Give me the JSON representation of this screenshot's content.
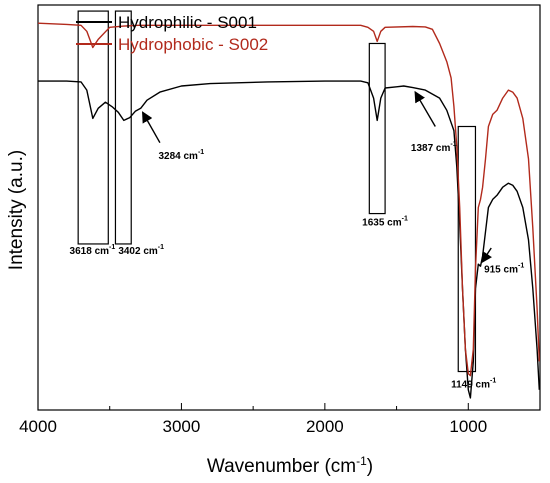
{
  "chart_data": {
    "type": "line",
    "xlabel": "Wavenumber (cm",
    "xlabel_sup": "-1",
    "xlabel_tail": ")",
    "ylabel": "Intensity (a.u.)",
    "xlim": [
      4000,
      500
    ],
    "x_reversed": true,
    "ylim": [
      0,
      1
    ],
    "y_ticks_shown": false,
    "xticks": [
      4000,
      3000,
      2000,
      1000
    ],
    "grid": false,
    "legend": "top-left",
    "series": [
      {
        "name": "Hydrophilic - S001",
        "color": "#000000",
        "points": [
          [
            4000,
            0.812
          ],
          [
            3800,
            0.812
          ],
          [
            3700,
            0.81
          ],
          [
            3660,
            0.79
          ],
          [
            3618,
            0.72
          ],
          [
            3580,
            0.745
          ],
          [
            3530,
            0.76
          ],
          [
            3480,
            0.748
          ],
          [
            3440,
            0.735
          ],
          [
            3402,
            0.715
          ],
          [
            3360,
            0.722
          ],
          [
            3320,
            0.738
          ],
          [
            3284,
            0.745
          ],
          [
            3240,
            0.765
          ],
          [
            3150,
            0.785
          ],
          [
            3000,
            0.8
          ],
          [
            2800,
            0.806
          ],
          [
            2400,
            0.81
          ],
          [
            2000,
            0.812
          ],
          [
            1750,
            0.812
          ],
          [
            1700,
            0.808
          ],
          [
            1660,
            0.77
          ],
          [
            1635,
            0.715
          ],
          [
            1610,
            0.77
          ],
          [
            1580,
            0.795
          ],
          [
            1500,
            0.798
          ],
          [
            1450,
            0.8
          ],
          [
            1387,
            0.796
          ],
          [
            1300,
            0.79
          ],
          [
            1200,
            0.77
          ],
          [
            1150,
            0.74
          ],
          [
            1100,
            0.69
          ],
          [
            1080,
            0.6
          ],
          [
            1060,
            0.46
          ],
          [
            1040,
            0.3
          ],
          [
            1020,
            0.15
          ],
          [
            1000,
            0.05
          ],
          [
            985,
            0.03
          ],
          [
            965,
            0.12
          ],
          [
            950,
            0.3
          ],
          [
            930,
            0.36
          ],
          [
            915,
            0.355
          ],
          [
            900,
            0.38
          ],
          [
            880,
            0.44
          ],
          [
            860,
            0.5
          ],
          [
            830,
            0.52
          ],
          [
            800,
            0.53
          ],
          [
            760,
            0.55
          ],
          [
            720,
            0.56
          ],
          [
            690,
            0.555
          ],
          [
            660,
            0.54
          ],
          [
            620,
            0.5
          ],
          [
            580,
            0.42
          ],
          [
            550,
            0.3
          ],
          [
            520,
            0.15
          ],
          [
            505,
            0.05
          ]
        ]
      },
      {
        "name": "Hydrophobic - S002",
        "color": "#b22a1c",
        "points": [
          [
            4000,
            0.955
          ],
          [
            3800,
            0.952
          ],
          [
            3700,
            0.95
          ],
          [
            3660,
            0.935
          ],
          [
            3618,
            0.895
          ],
          [
            3580,
            0.915
          ],
          [
            3500,
            0.945
          ],
          [
            3402,
            0.948
          ],
          [
            3300,
            0.95
          ],
          [
            3000,
            0.95
          ],
          [
            2000,
            0.95
          ],
          [
            1750,
            0.95
          ],
          [
            1700,
            0.945
          ],
          [
            1660,
            0.935
          ],
          [
            1635,
            0.91
          ],
          [
            1610,
            0.935
          ],
          [
            1580,
            0.945
          ],
          [
            1387,
            0.947
          ],
          [
            1300,
            0.946
          ],
          [
            1250,
            0.94
          ],
          [
            1200,
            0.905
          ],
          [
            1150,
            0.86
          ],
          [
            1120,
            0.82
          ],
          [
            1100,
            0.75
          ],
          [
            1080,
            0.65
          ],
          [
            1060,
            0.5
          ],
          [
            1040,
            0.3
          ],
          [
            1020,
            0.15
          ],
          [
            1000,
            0.09
          ],
          [
            985,
            0.085
          ],
          [
            965,
            0.15
          ],
          [
            950,
            0.35
          ],
          [
            930,
            0.5
          ],
          [
            915,
            0.52
          ],
          [
            900,
            0.55
          ],
          [
            880,
            0.62
          ],
          [
            860,
            0.7
          ],
          [
            830,
            0.73
          ],
          [
            800,
            0.74
          ],
          [
            760,
            0.77
          ],
          [
            720,
            0.79
          ],
          [
            690,
            0.785
          ],
          [
            660,
            0.77
          ],
          [
            620,
            0.72
          ],
          [
            580,
            0.62
          ],
          [
            550,
            0.45
          ],
          [
            520,
            0.25
          ],
          [
            505,
            0.12
          ]
        ]
      }
    ],
    "annotations": [
      {
        "label": "3618 cm",
        "sup": "-1"
      },
      {
        "label": "3402 cm",
        "sup": "-1"
      },
      {
        "label": "3284 cm",
        "sup": "-1"
      },
      {
        "label": "1635 cm",
        "sup": "-1"
      },
      {
        "label": "1387 cm",
        "sup": "-1"
      },
      {
        "label": "1149 cm",
        "sup": "-1"
      },
      {
        "label": "915 cm",
        "sup": "-1"
      }
    ]
  }
}
